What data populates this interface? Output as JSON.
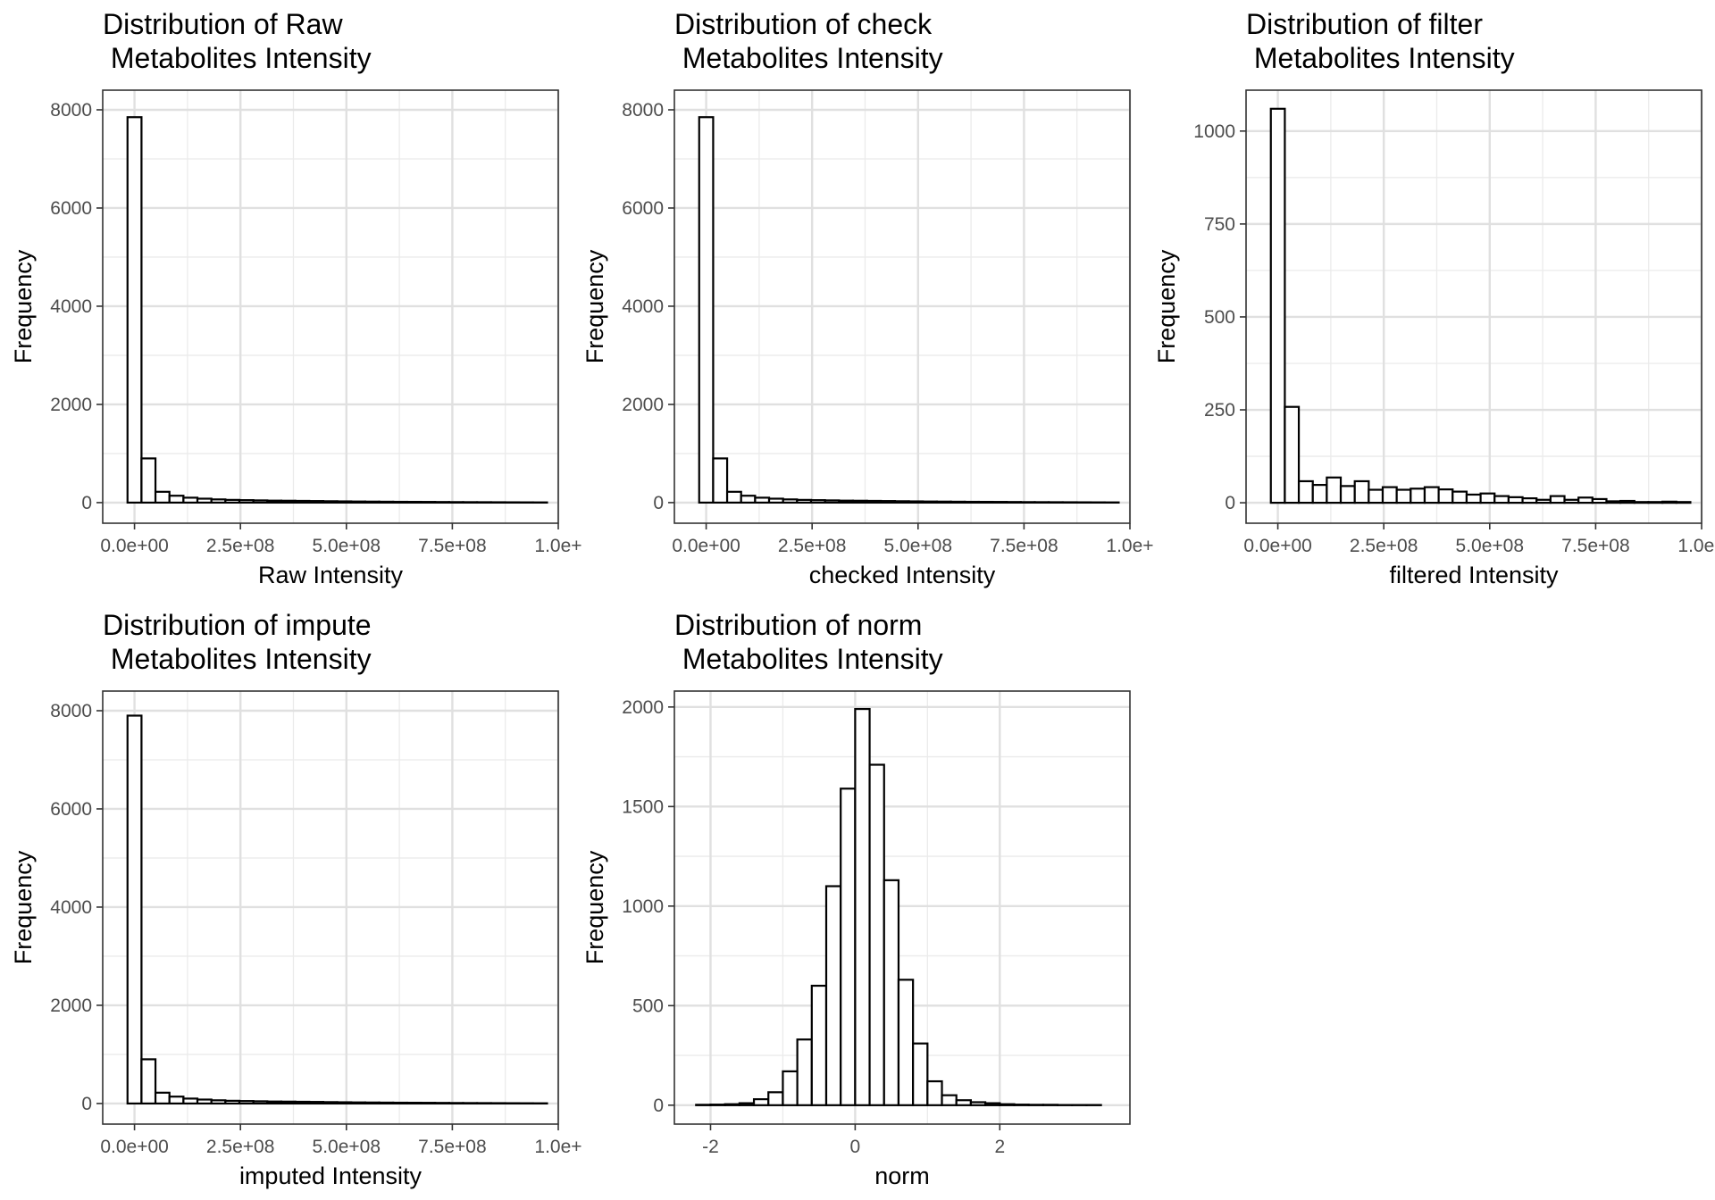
{
  "chart_data": [
    {
      "type": "bar",
      "title_lines": [
        "Distribution of Raw",
        " Metabolites Intensity"
      ],
      "xlabel": "Raw Intensity",
      "ylabel": "Frequency",
      "xlim": [
        -75000000.0,
        1000000000.0
      ],
      "ylim": [
        -420,
        8400
      ],
      "x_ticks": [
        0,
        250000000.0,
        500000000.0,
        750000000.0,
        1000000000.0
      ],
      "x_tick_labels": [
        "0.0e+00",
        "2.5e+08",
        "5.0e+08",
        "7.5e+08",
        "1.0e+"
      ],
      "y_ticks": [
        0,
        2000,
        4000,
        6000,
        8000
      ],
      "y_tick_labels": [
        "0",
        "2000",
        "4000",
        "6000",
        "8000"
      ],
      "grid": true,
      "bin_start": -16500000.0,
      "bin_width": 33000000.0,
      "values": [
        7850,
        900,
        220,
        140,
        100,
        80,
        65,
        55,
        50,
        45,
        40,
        38,
        35,
        32,
        28,
        25,
        22,
        20,
        18,
        16,
        15,
        14,
        12,
        10,
        9,
        8,
        7,
        6,
        5,
        4
      ]
    },
    {
      "type": "bar",
      "title_lines": [
        "Distribution of check",
        " Metabolites Intensity"
      ],
      "xlabel": "checked Intensity",
      "ylabel": "Frequency",
      "xlim": [
        -75000000.0,
        1000000000.0
      ],
      "ylim": [
        -420,
        8400
      ],
      "x_ticks": [
        0,
        250000000.0,
        500000000.0,
        750000000.0,
        1000000000.0
      ],
      "x_tick_labels": [
        "0.0e+00",
        "2.5e+08",
        "5.0e+08",
        "7.5e+08",
        "1.0e+"
      ],
      "y_ticks": [
        0,
        2000,
        4000,
        6000,
        8000
      ],
      "y_tick_labels": [
        "0",
        "2000",
        "4000",
        "6000",
        "8000"
      ],
      "grid": true,
      "bin_start": -16500000.0,
      "bin_width": 33000000.0,
      "values": [
        7850,
        900,
        220,
        140,
        100,
        80,
        65,
        55,
        50,
        45,
        40,
        38,
        35,
        32,
        28,
        25,
        22,
        20,
        18,
        16,
        15,
        14,
        12,
        10,
        9,
        8,
        7,
        6,
        5,
        4
      ]
    },
    {
      "type": "bar",
      "title_lines": [
        "Distribution of filter",
        " Metabolites Intensity"
      ],
      "xlabel": "filtered Intensity",
      "ylabel": "Frequency",
      "xlim": [
        -75000000.0,
        1000000000.0
      ],
      "ylim": [
        -55,
        1110
      ],
      "x_ticks": [
        0,
        250000000.0,
        500000000.0,
        750000000.0,
        1000000000.0
      ],
      "x_tick_labels": [
        "0.0e+00",
        "2.5e+08",
        "5.0e+08",
        "7.5e+08",
        "1.0e+"
      ],
      "y_ticks": [
        0,
        250,
        500,
        750,
        1000
      ],
      "y_tick_labels": [
        "0",
        "250",
        "500",
        "750",
        "1000"
      ],
      "grid": true,
      "bin_start": -16500000.0,
      "bin_width": 33000000.0,
      "values": [
        1060,
        258,
        58,
        48,
        68,
        45,
        58,
        35,
        42,
        35,
        38,
        42,
        36,
        30,
        22,
        25,
        18,
        15,
        12,
        8,
        18,
        8,
        14,
        10,
        4,
        5,
        2,
        2,
        3,
        2
      ]
    },
    {
      "type": "bar",
      "title_lines": [
        "Distribution of impute",
        " Metabolites Intensity"
      ],
      "xlabel": "imputed Intensity",
      "ylabel": "Frequency",
      "xlim": [
        -75000000.0,
        1000000000.0
      ],
      "ylim": [
        -420,
        8400
      ],
      "x_ticks": [
        0,
        250000000.0,
        500000000.0,
        750000000.0,
        1000000000.0
      ],
      "x_tick_labels": [
        "0.0e+00",
        "2.5e+08",
        "5.0e+08",
        "7.5e+08",
        "1.0e+"
      ],
      "y_ticks": [
        0,
        2000,
        4000,
        6000,
        8000
      ],
      "y_tick_labels": [
        "0",
        "2000",
        "4000",
        "6000",
        "8000"
      ],
      "grid": true,
      "bin_start": -16500000.0,
      "bin_width": 33000000.0,
      "values": [
        7900,
        900,
        220,
        140,
        100,
        80,
        65,
        55,
        50,
        45,
        40,
        38,
        35,
        32,
        28,
        25,
        22,
        20,
        18,
        16,
        15,
        14,
        12,
        10,
        9,
        8,
        7,
        6,
        5,
        4
      ]
    },
    {
      "type": "bar",
      "title_lines": [
        "Distribution of norm",
        " Metabolites Intensity"
      ],
      "xlabel": "norm",
      "ylabel": "Frequency",
      "xlim": [
        -2.5,
        3.8
      ],
      "ylim": [
        -95,
        2080
      ],
      "x_ticks": [
        -2,
        0,
        2
      ],
      "x_tick_labels": [
        "-2",
        "0",
        "2"
      ],
      "y_ticks": [
        0,
        500,
        1000,
        1500,
        2000
      ],
      "y_tick_labels": [
        "0",
        "500",
        "1000",
        "1500",
        "2000"
      ],
      "grid": true,
      "bin_start": -2.2,
      "bin_width": 0.2,
      "values": [
        2,
        3,
        5,
        10,
        30,
        65,
        170,
        330,
        600,
        1100,
        1590,
        1990,
        1710,
        1130,
        630,
        310,
        120,
        50,
        25,
        15,
        10,
        5,
        3,
        2,
        2,
        1,
        1,
        1,
        0
      ]
    }
  ]
}
